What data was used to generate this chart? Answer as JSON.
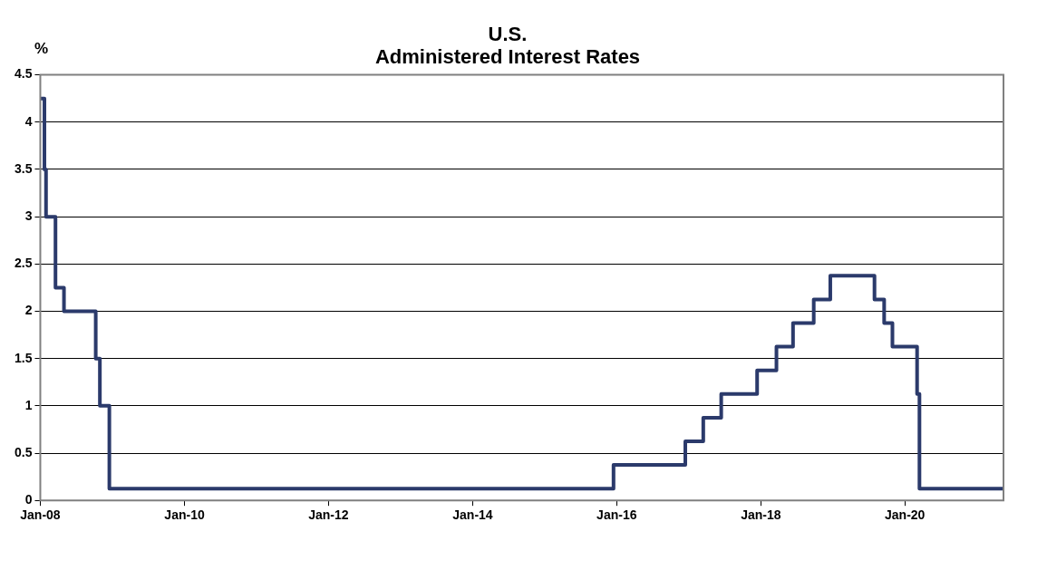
{
  "chart_data": {
    "type": "step",
    "title": "U.S.\nAdministered Interest Rates",
    "ylabel": "%",
    "x": [
      "2008-01-01",
      "2008-01-22",
      "2008-01-30",
      "2008-03-18",
      "2008-04-30",
      "2008-10-08",
      "2008-10-29",
      "2008-12-16",
      "2015-12-16",
      "2016-12-14",
      "2017-03-15",
      "2017-06-14",
      "2017-12-13",
      "2018-03-21",
      "2018-06-13",
      "2018-09-26",
      "2018-12-19",
      "2019-07-31",
      "2019-09-18",
      "2019-10-30",
      "2020-03-03",
      "2020-03-15",
      "2021-05-15"
    ],
    "series": [
      {
        "color": "#2b3a6b",
        "values": [
          4.25,
          3.5,
          3.0,
          2.25,
          2.0,
          1.5,
          1.0,
          0.125,
          0.375,
          0.625,
          0.875,
          1.125,
          1.375,
          1.625,
          1.875,
          2.125,
          2.375,
          2.125,
          1.875,
          1.625,
          1.125,
          0.125,
          0.125
        ]
      }
    ],
    "xlim": [
      "2008-01-01",
      "2021-05-15"
    ],
    "xticks": [
      {
        "value": "2008-01-01",
        "label": "Jan-08"
      },
      {
        "value": "2010-01-01",
        "label": "Jan-10"
      },
      {
        "value": "2012-01-01",
        "label": "Jan-12"
      },
      {
        "value": "2014-01-01",
        "label": "Jan-14"
      },
      {
        "value": "2016-01-01",
        "label": "Jan-16"
      },
      {
        "value": "2018-01-01",
        "label": "Jan-18"
      },
      {
        "value": "2020-01-01",
        "label": "Jan-20"
      }
    ],
    "ylim": [
      0,
      4.5
    ],
    "yticks": [
      0,
      0.5,
      1,
      1.5,
      2,
      2.5,
      3,
      3.5,
      4,
      4.5
    ],
    "grid": "y",
    "legend": false,
    "marker": "none",
    "line_style": "solid"
  }
}
